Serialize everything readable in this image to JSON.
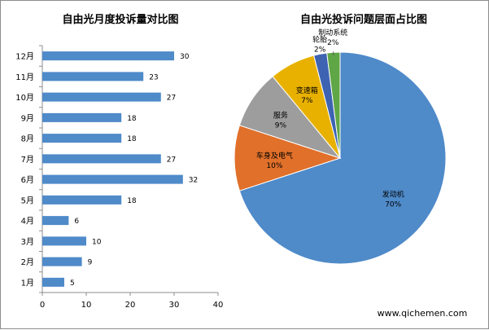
{
  "chart_data": [
    {
      "type": "bar",
      "orientation": "horizontal",
      "title": "自由光月度投诉量对比图",
      "categories": [
        "12月",
        "11月",
        "10月",
        "9月",
        "8月",
        "7月",
        "6月",
        "5月",
        "4月",
        "3月",
        "2月",
        "1月"
      ],
      "values": [
        30,
        23,
        27,
        18,
        18,
        27,
        32,
        18,
        6,
        10,
        9,
        5
      ],
      "xlim": [
        0,
        40
      ],
      "xticks": [
        "0",
        "10",
        "20",
        "30",
        "40"
      ],
      "bar_color": "#4f8ac9",
      "data_labels": true,
      "grid": false,
      "legend": "none"
    },
    {
      "type": "pie",
      "title": "自由光投诉问题层面占比图",
      "slices": [
        {
          "name": "发动机",
          "value": 70,
          "label": "70%",
          "color": "#4f8ac9"
        },
        {
          "name": "车身及电气",
          "value": 10,
          "label": "10%",
          "color": "#e0702a"
        },
        {
          "name": "服务",
          "value": 9,
          "label": "9%",
          "color": "#9d9d9d"
        },
        {
          "name": "变速箱",
          "value": 7,
          "label": "7%",
          "color": "#e8b100"
        },
        {
          "name": "轮胎",
          "value": 2,
          "label": "2%",
          "color": "#3e63b2"
        },
        {
          "name": "制动系统",
          "value": 2,
          "label": "2%",
          "color": "#5fa646"
        }
      ],
      "legend": "none"
    }
  ],
  "watermark": {
    "text": "www.qichemen.com"
  }
}
